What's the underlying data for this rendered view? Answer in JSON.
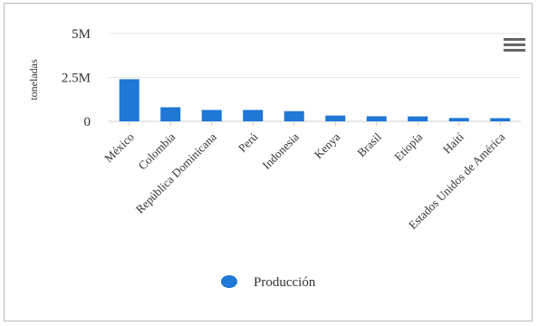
{
  "chart_data": {
    "type": "bar",
    "title": "",
    "xlabel": "",
    "ylabel": "toneladas",
    "ylim": [
      0,
      5000000
    ],
    "yticks": [
      {
        "value": 0,
        "label": "0"
      },
      {
        "value": 2500000,
        "label": "2.5M"
      },
      {
        "value": 5000000,
        "label": "5M"
      }
    ],
    "categories": [
      "México",
      "Colombia",
      "República Dominicana",
      "Perú",
      "Indonesia",
      "Kenya",
      "Brasil",
      "Etiopía",
      "Haití",
      "Estados Unidos de América"
    ],
    "series": [
      {
        "name": "Producción",
        "color": "#1f77d6",
        "values": [
          2400000,
          800000,
          650000,
          650000,
          580000,
          330000,
          290000,
          280000,
          190000,
          180000
        ]
      }
    ],
    "legend": "bottom-center",
    "grid": true
  },
  "menu_icon": "hamburger-menu-icon"
}
